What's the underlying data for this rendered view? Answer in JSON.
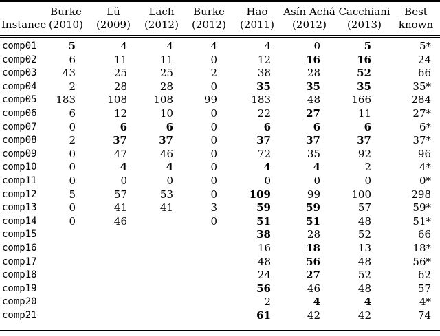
{
  "colors": {
    "text": "#000000",
    "background": "#ffffff",
    "rule": "#000000"
  },
  "table": {
    "columns": [
      {
        "key": "instance",
        "line1": "Instance",
        "line2": ""
      },
      {
        "key": "burke-2010",
        "line1": "Burke",
        "line2": "(2010)"
      },
      {
        "key": "lu-2009",
        "line1": "Lü",
        "line2": "(2009)"
      },
      {
        "key": "lach-2012",
        "line1": "Lach",
        "line2": "(2012)"
      },
      {
        "key": "burke-2012",
        "line1": "Burke",
        "line2": "(2012)"
      },
      {
        "key": "hao-2011",
        "line1": "Hao",
        "line2": "(2011)"
      },
      {
        "key": "asin-acha-2012",
        "line1": "Asín Achá",
        "line2": "(2012)"
      },
      {
        "key": "cacchiani-2013",
        "line1": "Cacchiani",
        "line2": "(2013)"
      },
      {
        "key": "best-known",
        "line1": "Best",
        "line2": "known"
      }
    ],
    "rows": [
      {
        "instance": "comp01",
        "values": [
          "5",
          "4",
          "4",
          "4",
          "4",
          "0",
          "5",
          "5*"
        ],
        "bold": [
          true,
          false,
          false,
          false,
          false,
          false,
          true,
          false
        ]
      },
      {
        "instance": "comp02",
        "values": [
          "6",
          "11",
          "11",
          "0",
          "12",
          "16",
          "16",
          "24"
        ],
        "bold": [
          false,
          false,
          false,
          false,
          false,
          true,
          true,
          false
        ]
      },
      {
        "instance": "comp03",
        "values": [
          "43",
          "25",
          "25",
          "2",
          "38",
          "28",
          "52",
          "66"
        ],
        "bold": [
          false,
          false,
          false,
          false,
          false,
          false,
          true,
          false
        ]
      },
      {
        "instance": "comp04",
        "values": [
          "2",
          "28",
          "28",
          "0",
          "35",
          "35",
          "35",
          "35*"
        ],
        "bold": [
          false,
          false,
          false,
          false,
          true,
          true,
          true,
          false
        ]
      },
      {
        "instance": "comp05",
        "values": [
          "183",
          "108",
          "108",
          "99",
          "183",
          "48",
          "166",
          "284"
        ],
        "bold": [
          false,
          false,
          false,
          false,
          false,
          false,
          false,
          false
        ]
      },
      {
        "instance": "comp06",
        "values": [
          "6",
          "12",
          "10",
          "0",
          "22",
          "27",
          "11",
          "27*"
        ],
        "bold": [
          false,
          false,
          false,
          false,
          false,
          true,
          false,
          false
        ]
      },
      {
        "instance": "comp07",
        "values": [
          "0",
          "6",
          "6",
          "0",
          "6",
          "6",
          "6",
          "6*"
        ],
        "bold": [
          false,
          true,
          true,
          false,
          true,
          true,
          true,
          false
        ]
      },
      {
        "instance": "comp08",
        "values": [
          "2",
          "37",
          "37",
          "0",
          "37",
          "37",
          "37",
          "37*"
        ],
        "bold": [
          false,
          true,
          true,
          false,
          true,
          true,
          true,
          false
        ]
      },
      {
        "instance": "comp09",
        "values": [
          "0",
          "47",
          "46",
          "0",
          "72",
          "35",
          "92",
          "96"
        ],
        "bold": [
          false,
          false,
          false,
          false,
          false,
          false,
          false,
          false
        ]
      },
      {
        "instance": "comp10",
        "values": [
          "0",
          "4",
          "4",
          "0",
          "4",
          "4",
          "2",
          "4*"
        ],
        "bold": [
          false,
          true,
          true,
          false,
          true,
          true,
          false,
          false
        ]
      },
      {
        "instance": "comp11",
        "values": [
          "0",
          "0",
          "0",
          "0",
          "0",
          "0",
          "0",
          "0*"
        ],
        "bold": [
          false,
          false,
          false,
          false,
          false,
          false,
          false,
          false
        ]
      },
      {
        "instance": "comp12",
        "values": [
          "5",
          "57",
          "53",
          "0",
          "109",
          "99",
          "100",
          "298"
        ],
        "bold": [
          false,
          false,
          false,
          false,
          true,
          false,
          false,
          false
        ]
      },
      {
        "instance": "comp13",
        "values": [
          "0",
          "41",
          "41",
          "3",
          "59",
          "59",
          "57",
          "59*"
        ],
        "bold": [
          false,
          false,
          false,
          false,
          true,
          true,
          false,
          false
        ]
      },
      {
        "instance": "comp14",
        "values": [
          "0",
          "46",
          "",
          "0",
          "51",
          "51",
          "48",
          "51*"
        ],
        "bold": [
          false,
          false,
          false,
          false,
          true,
          true,
          false,
          false
        ]
      },
      {
        "instance": "comp15",
        "values": [
          "",
          "",
          "",
          "",
          "38",
          "28",
          "52",
          "66"
        ],
        "bold": [
          false,
          false,
          false,
          false,
          true,
          false,
          false,
          false
        ]
      },
      {
        "instance": "comp16",
        "values": [
          "",
          "",
          "",
          "",
          "16",
          "18",
          "13",
          "18*"
        ],
        "bold": [
          false,
          false,
          false,
          false,
          false,
          true,
          false,
          false
        ]
      },
      {
        "instance": "comp17",
        "values": [
          "",
          "",
          "",
          "",
          "48",
          "56",
          "48",
          "56*"
        ],
        "bold": [
          false,
          false,
          false,
          false,
          false,
          true,
          false,
          false
        ]
      },
      {
        "instance": "comp18",
        "values": [
          "",
          "",
          "",
          "",
          "24",
          "27",
          "52",
          "62"
        ],
        "bold": [
          false,
          false,
          false,
          false,
          false,
          true,
          false,
          false
        ]
      },
      {
        "instance": "comp19",
        "values": [
          "",
          "",
          "",
          "",
          "56",
          "46",
          "48",
          "57"
        ],
        "bold": [
          false,
          false,
          false,
          false,
          true,
          false,
          false,
          false
        ]
      },
      {
        "instance": "comp20",
        "values": [
          "",
          "",
          "",
          "",
          "2",
          "4",
          "4",
          "4*"
        ],
        "bold": [
          false,
          false,
          false,
          false,
          false,
          true,
          true,
          false
        ]
      },
      {
        "instance": "comp21",
        "values": [
          "",
          "",
          "",
          "",
          "61",
          "42",
          "42",
          "74"
        ],
        "bold": [
          false,
          false,
          false,
          false,
          true,
          false,
          false,
          false
        ]
      }
    ]
  }
}
